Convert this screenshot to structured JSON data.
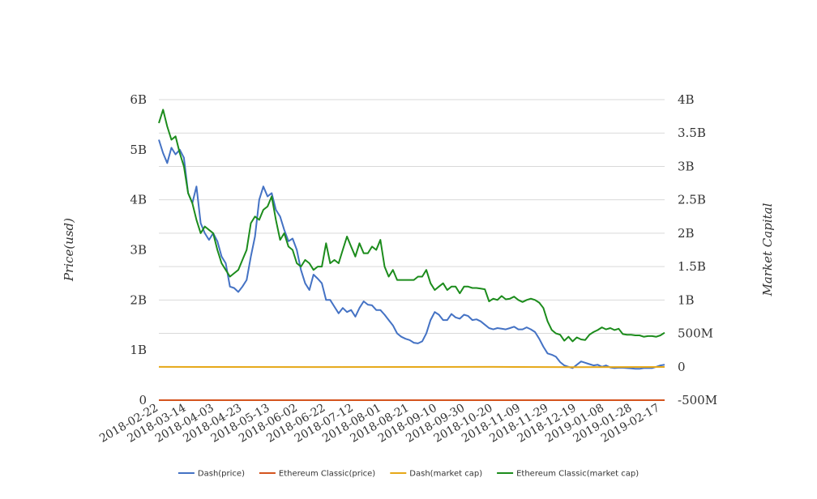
{
  "chart_data": {
    "type": "line",
    "title": "",
    "ylabel": "Price(usd)",
    "y2label": "Market Capital",
    "ylim": [
      0,
      6000000000
    ],
    "y2lim": [
      -500000000,
      4000000000
    ],
    "y_ticks": [
      "0",
      "1B",
      "2B",
      "3B",
      "4B",
      "5B",
      "6B"
    ],
    "y2_ticks": [
      "-500M",
      "0",
      "500M",
      "1B",
      "1.5B",
      "2B",
      "2.5B",
      "3B",
      "3.5B",
      "4B"
    ],
    "x_ticks": [
      "2018-02-22",
      "2018-03-14",
      "2018-04-03",
      "2018-04-23",
      "2018-05-13",
      "2018-06-02",
      "2018-06-22",
      "2018-07-12",
      "2018-08-01",
      "2018-08-21",
      "2018-09-10",
      "2018-09-30",
      "2018-10-20",
      "2018-11-09",
      "2018-11-29",
      "2018-12-19",
      "2019-01-08",
      "2019-01-28",
      "2019-02-17"
    ],
    "grid": true,
    "legend_position": "bottom",
    "series": [
      {
        "name": "Dash(price)",
        "color": "#4472c4",
        "axis": "right",
        "x": [
          "2018-02-22",
          "2018-02-25",
          "2018-02-28",
          "2018-03-03",
          "2018-03-06",
          "2018-03-09",
          "2018-03-12",
          "2018-03-15",
          "2018-03-18",
          "2018-03-21",
          "2018-03-24",
          "2018-03-27",
          "2018-03-30",
          "2018-04-02",
          "2018-04-05",
          "2018-04-08",
          "2018-04-11",
          "2018-04-14",
          "2018-04-17",
          "2018-04-20",
          "2018-04-23",
          "2018-04-26",
          "2018-04-29",
          "2018-05-02",
          "2018-05-05",
          "2018-05-08",
          "2018-05-11",
          "2018-05-14",
          "2018-05-17",
          "2018-05-20",
          "2018-05-23",
          "2018-05-26",
          "2018-05-29",
          "2018-06-01",
          "2018-06-04",
          "2018-06-07",
          "2018-06-10",
          "2018-06-13",
          "2018-06-16",
          "2018-06-19",
          "2018-06-22",
          "2018-06-25",
          "2018-06-28",
          "2018-07-01",
          "2018-07-04",
          "2018-07-07",
          "2018-07-10",
          "2018-07-13",
          "2018-07-16",
          "2018-07-19",
          "2018-07-22",
          "2018-07-25",
          "2018-07-28",
          "2018-07-31",
          "2018-08-03",
          "2018-08-06",
          "2018-08-09",
          "2018-08-12",
          "2018-08-15",
          "2018-08-18",
          "2018-08-21",
          "2018-08-24",
          "2018-08-27",
          "2018-08-30",
          "2018-09-02",
          "2018-09-05",
          "2018-09-08",
          "2018-09-11",
          "2018-09-14",
          "2018-09-17",
          "2018-09-20",
          "2018-09-23",
          "2018-09-26",
          "2018-09-29",
          "2018-10-02",
          "2018-10-05",
          "2018-10-08",
          "2018-10-11",
          "2018-10-14",
          "2018-10-17",
          "2018-10-20",
          "2018-10-23",
          "2018-10-26",
          "2018-10-29",
          "2018-11-01",
          "2018-11-04",
          "2018-11-07",
          "2018-11-10",
          "2018-11-13",
          "2018-11-16",
          "2018-11-19",
          "2018-11-22",
          "2018-11-25",
          "2018-11-28",
          "2018-12-01",
          "2018-12-04",
          "2018-12-07",
          "2018-12-10",
          "2018-12-13",
          "2018-12-16",
          "2018-12-19",
          "2018-12-22",
          "2018-12-25",
          "2018-12-28",
          "2018-12-31",
          "2019-01-03",
          "2019-01-06",
          "2019-01-09",
          "2019-01-12",
          "2019-01-15",
          "2019-01-18",
          "2019-01-21",
          "2019-01-24",
          "2019-01-27",
          "2019-01-30",
          "2019-02-02",
          "2019-02-05",
          "2019-02-08",
          "2019-02-11",
          "2019-02-14",
          "2019-02-17",
          "2019-02-20"
        ],
        "values": [
          3400000000,
          3200000000,
          3050000000,
          3280000000,
          3180000000,
          3250000000,
          3130000000,
          2600000000,
          2450000000,
          2700000000,
          2150000000,
          2000000000,
          1900000000,
          2000000000,
          1880000000,
          1650000000,
          1550000000,
          1200000000,
          1180000000,
          1120000000,
          1200000000,
          1300000000,
          1650000000,
          1950000000,
          2500000000,
          2700000000,
          2550000000,
          2600000000,
          2350000000,
          2250000000,
          2050000000,
          1880000000,
          1920000000,
          1750000000,
          1450000000,
          1250000000,
          1150000000,
          1380000000,
          1320000000,
          1250000000,
          1000000000,
          1000000000,
          900000000,
          800000000,
          880000000,
          820000000,
          850000000,
          750000000,
          880000000,
          980000000,
          930000000,
          920000000,
          850000000,
          850000000,
          780000000,
          700000000,
          620000000,
          500000000,
          450000000,
          420000000,
          400000000,
          360000000,
          350000000,
          380000000,
          500000000,
          700000000,
          820000000,
          780000000,
          700000000,
          700000000,
          790000000,
          740000000,
          720000000,
          780000000,
          760000000,
          700000000,
          710000000,
          680000000,
          630000000,
          580000000,
          560000000,
          580000000,
          570000000,
          560000000,
          580000000,
          600000000,
          560000000,
          560000000,
          590000000,
          560000000,
          520000000,
          420000000,
          300000000,
          200000000,
          180000000,
          150000000,
          70000000,
          20000000,
          0,
          -20000000,
          30000000,
          80000000,
          60000000,
          40000000,
          20000000,
          30000000,
          0,
          20000000,
          -10000000,
          -20000000,
          -15000000,
          -15000000,
          -20000000,
          -25000000,
          -30000000,
          -30000000,
          -20000000,
          -20000000,
          -20000000,
          0,
          20000000,
          30000000
        ]
      },
      {
        "name": "Ethereum Classic(price)",
        "color": "#d4541e",
        "axis": "left",
        "x": [
          "2018-02-22",
          "2019-02-20"
        ],
        "values": [
          25,
          5
        ]
      },
      {
        "name": "Dash(market cap)",
        "color": "#e6a818",
        "axis": "left",
        "x": [
          "2018-02-22",
          "2018-06-22",
          "2018-10-20",
          "2018-12-19",
          "2019-02-20"
        ],
        "values": [
          665000000,
          662000000,
          664000000,
          660000000,
          663000000
        ]
      },
      {
        "name": "Ethereum Classic(market cap)",
        "color": "#1c8c1c",
        "axis": "right",
        "x": [
          "2018-02-22",
          "2018-02-25",
          "2018-02-28",
          "2018-03-03",
          "2018-03-06",
          "2018-03-09",
          "2018-03-12",
          "2018-03-15",
          "2018-03-18",
          "2018-03-21",
          "2018-03-24",
          "2018-03-27",
          "2018-03-30",
          "2018-04-02",
          "2018-04-05",
          "2018-04-08",
          "2018-04-11",
          "2018-04-14",
          "2018-04-17",
          "2018-04-20",
          "2018-04-23",
          "2018-04-26",
          "2018-04-29",
          "2018-05-02",
          "2018-05-05",
          "2018-05-08",
          "2018-05-11",
          "2018-05-14",
          "2018-05-17",
          "2018-05-20",
          "2018-05-23",
          "2018-05-26",
          "2018-05-29",
          "2018-06-01",
          "2018-06-04",
          "2018-06-07",
          "2018-06-10",
          "2018-06-13",
          "2018-06-16",
          "2018-06-19",
          "2018-06-22",
          "2018-06-25",
          "2018-06-28",
          "2018-07-01",
          "2018-07-04",
          "2018-07-07",
          "2018-07-10",
          "2018-07-13",
          "2018-07-16",
          "2018-07-19",
          "2018-07-22",
          "2018-07-25",
          "2018-07-28",
          "2018-07-31",
          "2018-08-03",
          "2018-08-06",
          "2018-08-09",
          "2018-08-12",
          "2018-08-15",
          "2018-08-18",
          "2018-08-21",
          "2018-08-24",
          "2018-08-27",
          "2018-08-30",
          "2018-09-02",
          "2018-09-05",
          "2018-09-08",
          "2018-09-11",
          "2018-09-14",
          "2018-09-17",
          "2018-09-20",
          "2018-09-23",
          "2018-09-26",
          "2018-09-29",
          "2018-10-02",
          "2018-10-05",
          "2018-10-08",
          "2018-10-11",
          "2018-10-14",
          "2018-10-17",
          "2018-10-20",
          "2018-10-23",
          "2018-10-26",
          "2018-10-29",
          "2018-11-01",
          "2018-11-04",
          "2018-11-07",
          "2018-11-10",
          "2018-11-13",
          "2018-11-16",
          "2018-11-19",
          "2018-11-22",
          "2018-11-25",
          "2018-11-28",
          "2018-12-01",
          "2018-12-04",
          "2018-12-07",
          "2018-12-10",
          "2018-12-13",
          "2018-12-16",
          "2018-12-19",
          "2018-12-22",
          "2018-12-25",
          "2018-12-28",
          "2018-12-31",
          "2019-01-03",
          "2019-01-06",
          "2019-01-09",
          "2019-01-12",
          "2019-01-15",
          "2019-01-18",
          "2019-01-21",
          "2019-01-24",
          "2019-01-27",
          "2019-01-30",
          "2019-02-02",
          "2019-02-05",
          "2019-02-08",
          "2019-02-11",
          "2019-02-14",
          "2019-02-17",
          "2019-02-20"
        ],
        "values": [
          3650000000,
          3850000000,
          3600000000,
          3400000000,
          3450000000,
          3200000000,
          3000000000,
          2600000000,
          2450000000,
          2200000000,
          2000000000,
          2100000000,
          2050000000,
          2000000000,
          1750000000,
          1550000000,
          1450000000,
          1350000000,
          1400000000,
          1450000000,
          1600000000,
          1750000000,
          2150000000,
          2250000000,
          2200000000,
          2350000000,
          2400000000,
          2550000000,
          2200000000,
          1900000000,
          2000000000,
          1800000000,
          1750000000,
          1550000000,
          1500000000,
          1600000000,
          1550000000,
          1450000000,
          1500000000,
          1500000000,
          1850000000,
          1550000000,
          1600000000,
          1550000000,
          1750000000,
          1950000000,
          1800000000,
          1650000000,
          1850000000,
          1700000000,
          1700000000,
          1800000000,
          1750000000,
          1900000000,
          1500000000,
          1350000000,
          1450000000,
          1300000000,
          1300000000,
          1300000000,
          1300000000,
          1300000000,
          1350000000,
          1350000000,
          1450000000,
          1250000000,
          1150000000,
          1200000000,
          1250000000,
          1150000000,
          1200000000,
          1200000000,
          1100000000,
          1200000000,
          1200000000,
          1180000000,
          1180000000,
          1170000000,
          1160000000,
          980000000,
          1020000000,
          1000000000,
          1060000000,
          1010000000,
          1020000000,
          1050000000,
          1000000000,
          970000000,
          1000000000,
          1020000000,
          1000000000,
          960000000,
          880000000,
          680000000,
          550000000,
          500000000,
          480000000,
          390000000,
          450000000,
          380000000,
          440000000,
          410000000,
          400000000,
          480000000,
          520000000,
          550000000,
          590000000,
          560000000,
          580000000,
          550000000,
          570000000,
          490000000,
          480000000,
          480000000,
          470000000,
          470000000,
          450000000,
          460000000,
          460000000,
          450000000,
          470000000,
          510000000
        ]
      }
    ]
  }
}
